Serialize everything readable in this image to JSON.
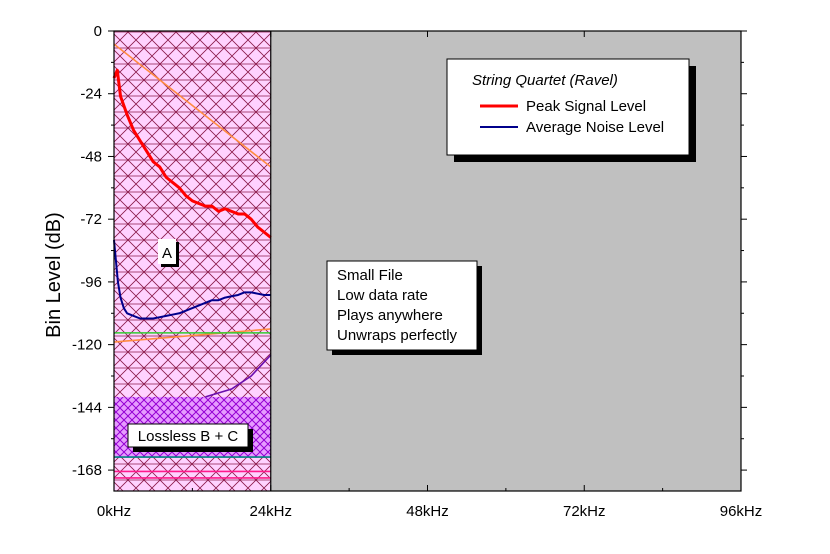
{
  "chart_data": {
    "type": "line",
    "ylabel": "Bin Level (dB)",
    "xlabel": "",
    "xlim": [
      0,
      96000
    ],
    "ylim": [
      -176,
      0
    ],
    "x_ticks": [
      {
        "value": 0,
        "label": "0kHz"
      },
      {
        "value": 24000,
        "label": "24kHz"
      },
      {
        "value": 48000,
        "label": "48kHz"
      },
      {
        "value": 72000,
        "label": "72kHz"
      },
      {
        "value": 96000,
        "label": "96kHz"
      }
    ],
    "y_ticks": [
      0,
      -24,
      -48,
      -72,
      -96,
      -120,
      -144,
      -168
    ],
    "legend": {
      "title": "String Quartet (Ravel)",
      "placement": "top-right",
      "entries": [
        "Peak Signal Level",
        "Average Noise Level"
      ]
    },
    "series": [
      {
        "name": "Peak Signal Level",
        "color": "#ff0000",
        "x": [
          0,
          500,
          1000,
          2000,
          3000,
          4000,
          5000,
          6000,
          7000,
          8000,
          9000,
          10000,
          11000,
          12000,
          13000,
          14000,
          15000,
          16000,
          17000,
          18000,
          19000,
          20000,
          21000,
          22000,
          23000,
          24000
        ],
        "y": [
          -18,
          -15,
          -25,
          -32,
          -38,
          -42,
          -46,
          -50,
          -52,
          -56,
          -58,
          -60,
          -63,
          -65,
          -66,
          -67,
          -67,
          -69,
          -68,
          -69,
          -70,
          -70,
          -72,
          -75,
          -77,
          -79
        ]
      },
      {
        "name": "Average Noise Level",
        "color": "#00008b",
        "x": [
          0,
          300,
          600,
          1000,
          1500,
          2000,
          3000,
          4000,
          5000,
          6000,
          7000,
          8000,
          9000,
          10000,
          11000,
          12000,
          13000,
          14000,
          15000,
          16000,
          17000,
          18000,
          19000,
          20000,
          21000,
          22000,
          23000,
          24000
        ],
        "y": [
          -80,
          -88,
          -96,
          -102,
          -106,
          -108,
          -109,
          -110,
          -110,
          -110,
          -109.5,
          -109,
          -108.5,
          -108,
          -107,
          -106,
          -105,
          -104,
          -103,
          -103,
          -102,
          -101.5,
          -101,
          -100,
          -100,
          -100.5,
          -101,
          -101
        ]
      }
    ],
    "annotations": [
      {
        "text": "A"
      },
      {
        "lines": [
          "Small File",
          "Low data rate",
          "Plays anywhere",
          "Unwraps perfectly"
        ]
      },
      {
        "text": "Lossless B + C"
      }
    ],
    "reference_lines": [
      {
        "color": "#ff8c42",
        "x": [
          0,
          24000
        ],
        "y": [
          -5,
          -52
        ]
      },
      {
        "color": "#ff8c42",
        "x": [
          0,
          24000
        ],
        "y": [
          -119,
          -114
        ]
      },
      {
        "color": "#33cc33",
        "x": [
          0,
          24000
        ],
        "y": [
          -115.5,
          -115.5
        ]
      },
      {
        "color": "#6a0dad",
        "x": [
          14000,
          18000,
          21000,
          24000
        ],
        "y": [
          -140,
          -137,
          -132,
          -124
        ]
      },
      {
        "color": "#008080",
        "x": [
          0,
          24000
        ],
        "y": [
          -163,
          -163
        ]
      },
      {
        "color": "#ff1a8c",
        "x": [
          0,
          24000
        ],
        "y": [
          -168.5,
          -168.5
        ]
      },
      {
        "color": "#ff1a8c",
        "x": [
          0,
          24000
        ],
        "y": [
          -171,
          -171
        ]
      }
    ],
    "colors": {
      "background_right": "#c0c0c0",
      "hatch_region": "#ffc8ff",
      "hatch_lines": "#8b0000",
      "lossless_band": "#d966ff"
    }
  }
}
